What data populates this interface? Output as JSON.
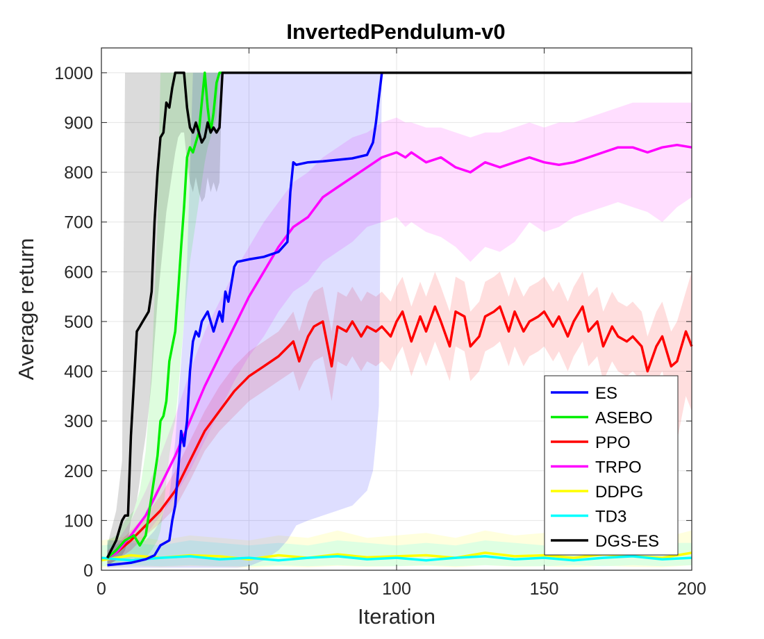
{
  "chart_data": {
    "type": "line",
    "title": "InvertedPendulum-v0",
    "xlabel": "Iteration",
    "ylabel": "Average return",
    "xlim": [
      0,
      200
    ],
    "ylim": [
      0,
      1050
    ],
    "xticks": [
      0,
      50,
      100,
      150,
      200
    ],
    "yticks": [
      0,
      100,
      200,
      300,
      400,
      500,
      600,
      700,
      800,
      900,
      1000
    ],
    "grid": true,
    "legend_position": "bottom-right",
    "series": [
      {
        "name": "ES",
        "color": "#0000ff",
        "x": [
          2,
          10,
          15,
          18,
          20,
          23,
          24,
          25,
          26,
          27,
          28,
          29,
          30,
          31,
          32,
          33,
          34,
          36,
          38,
          40,
          41,
          42,
          43,
          45,
          46,
          50,
          55,
          60,
          63,
          64,
          65,
          66,
          70,
          75,
          80,
          85,
          90,
          92,
          93,
          94,
          95,
          200
        ],
        "y": [
          10,
          15,
          22,
          30,
          50,
          60,
          100,
          130,
          200,
          280,
          250,
          300,
          400,
          460,
          480,
          470,
          500,
          520,
          480,
          520,
          500,
          560,
          540,
          610,
          620,
          625,
          630,
          640,
          660,
          760,
          820,
          815,
          820,
          822,
          825,
          828,
          835,
          860,
          900,
          950,
          1000,
          1000
        ],
        "band_upper": [
          60,
          60,
          60,
          80,
          100,
          150,
          200,
          260,
          340,
          420,
          500,
          620,
          800,
          1000,
          1000,
          1000,
          1000,
          1000,
          1000,
          1000,
          1000,
          1000,
          1000,
          1000,
          1000,
          1000,
          1000,
          1000,
          1000,
          1000,
          1000,
          1000,
          1000,
          1000,
          1000,
          1000,
          1000,
          1000,
          1000,
          1000,
          1000,
          1000
        ],
        "band_lower": [
          5,
          5,
          5,
          5,
          5,
          5,
          5,
          5,
          5,
          5,
          5,
          5,
          5,
          5,
          5,
          5,
          5,
          5,
          5,
          5,
          5,
          5,
          5,
          5,
          5,
          8,
          20,
          40,
          60,
          70,
          80,
          90,
          100,
          110,
          120,
          130,
          160,
          200,
          260,
          330,
          1000,
          1000
        ]
      },
      {
        "name": "ASEBO",
        "color": "#00ee00",
        "x": [
          2,
          5,
          8,
          11,
          13,
          15,
          17,
          19,
          20,
          21,
          22,
          23,
          24,
          25,
          26,
          27,
          28,
          29,
          30,
          31,
          32,
          33,
          34,
          35,
          36,
          37,
          38,
          39,
          40,
          41,
          42,
          200
        ],
        "y": [
          25,
          40,
          60,
          70,
          50,
          70,
          150,
          230,
          300,
          310,
          340,
          420,
          450,
          480,
          560,
          650,
          730,
          830,
          850,
          840,
          860,
          880,
          940,
          1000,
          930,
          880,
          920,
          980,
          1000,
          1000,
          1000,
          1000
        ],
        "band_upper": [
          60,
          70,
          100,
          120,
          160,
          240,
          400,
          700,
          1000,
          1000,
          1000,
          1000,
          1000,
          1000,
          1000,
          1000,
          1000,
          1000,
          1000,
          1000,
          1000,
          1000,
          1000,
          1000,
          1000,
          1000,
          1000,
          1000,
          1000,
          1000,
          1000,
          1000
        ],
        "band_lower": [
          10,
          15,
          20,
          25,
          15,
          25,
          40,
          60,
          80,
          120,
          180,
          230,
          270,
          300,
          360,
          430,
          500,
          560,
          620,
          660,
          700,
          740,
          780,
          820,
          850,
          870,
          890,
          910,
          1000,
          1000,
          1000,
          1000
        ]
      },
      {
        "name": "PPO",
        "color": "#ff0000",
        "x": [
          2,
          5,
          10,
          15,
          20,
          25,
          30,
          35,
          40,
          45,
          50,
          55,
          60,
          65,
          67,
          70,
          72,
          75,
          78,
          80,
          83,
          85,
          88,
          90,
          93,
          95,
          98,
          100,
          102,
          105,
          108,
          110,
          113,
          115,
          118,
          120,
          123,
          125,
          128,
          130,
          133,
          135,
          138,
          140,
          143,
          145,
          148,
          150,
          153,
          155,
          158,
          160,
          163,
          165,
          168,
          170,
          173,
          175,
          178,
          180,
          183,
          185,
          188,
          190,
          193,
          195,
          198,
          200
        ],
        "y": [
          25,
          35,
          60,
          90,
          120,
          160,
          220,
          280,
          320,
          360,
          390,
          410,
          430,
          460,
          420,
          470,
          490,
          500,
          410,
          490,
          480,
          500,
          470,
          490,
          480,
          490,
          470,
          500,
          520,
          460,
          510,
          480,
          530,
          500,
          450,
          520,
          510,
          450,
          470,
          510,
          520,
          530,
          480,
          520,
          480,
          500,
          510,
          520,
          490,
          510,
          470,
          500,
          530,
          480,
          500,
          450,
          490,
          470,
          460,
          470,
          450,
          400,
          450,
          470,
          410,
          420,
          480,
          450
        ],
        "band_upper": [
          40,
          50,
          80,
          110,
          150,
          200,
          260,
          320,
          370,
          410,
          440,
          460,
          480,
          520,
          480,
          540,
          560,
          570,
          480,
          560,
          550,
          570,
          540,
          560,
          550,
          560,
          540,
          570,
          590,
          530,
          580,
          550,
          600,
          570,
          520,
          590,
          580,
          520,
          540,
          580,
          590,
          600,
          550,
          590,
          550,
          570,
          580,
          590,
          560,
          580,
          540,
          570,
          600,
          550,
          570,
          520,
          560,
          540,
          530,
          540,
          520,
          470,
          520,
          540,
          480,
          500,
          560,
          600
        ],
        "band_lower": [
          10,
          20,
          40,
          70,
          95,
          125,
          180,
          240,
          280,
          310,
          340,
          360,
          380,
          400,
          360,
          400,
          420,
          430,
          340,
          420,
          410,
          430,
          400,
          420,
          410,
          420,
          400,
          430,
          450,
          390,
          440,
          410,
          460,
          430,
          380,
          450,
          440,
          380,
          400,
          440,
          450,
          460,
          410,
          450,
          410,
          430,
          440,
          450,
          420,
          440,
          400,
          430,
          460,
          410,
          430,
          380,
          420,
          400,
          390,
          400,
          380,
          330,
          380,
          400,
          340,
          260,
          350,
          320
        ]
      },
      {
        "name": "TRPO",
        "color": "#ff00ff",
        "x": [
          2,
          5,
          10,
          15,
          20,
          25,
          30,
          35,
          40,
          45,
          50,
          55,
          60,
          65,
          70,
          75,
          80,
          85,
          90,
          95,
          100,
          103,
          105,
          110,
          115,
          120,
          125,
          130,
          135,
          140,
          145,
          150,
          155,
          160,
          165,
          170,
          175,
          180,
          185,
          190,
          195,
          200
        ],
        "y": [
          25,
          35,
          70,
          110,
          170,
          230,
          300,
          370,
          430,
          490,
          550,
          600,
          650,
          690,
          710,
          750,
          770,
          790,
          810,
          830,
          840,
          830,
          840,
          820,
          830,
          810,
          800,
          820,
          810,
          820,
          830,
          820,
          815,
          820,
          830,
          840,
          850,
          850,
          840,
          850,
          855,
          850
        ],
        "band_upper": [
          40,
          55,
          100,
          160,
          230,
          310,
          400,
          480,
          540,
          600,
          650,
          700,
          740,
          780,
          800,
          830,
          850,
          870,
          880,
          900,
          910,
          900,
          900,
          890,
          890,
          880,
          870,
          880,
          880,
          890,
          900,
          890,
          900,
          900,
          910,
          920,
          930,
          940,
          940,
          940,
          940,
          940
        ],
        "band_lower": [
          10,
          20,
          40,
          70,
          110,
          150,
          200,
          260,
          320,
          380,
          430,
          470,
          520,
          560,
          580,
          620,
          640,
          660,
          690,
          700,
          710,
          690,
          700,
          680,
          670,
          650,
          620,
          650,
          640,
          660,
          700,
          680,
          690,
          710,
          720,
          730,
          740,
          730,
          720,
          700,
          730,
          750
        ]
      },
      {
        "name": "DDPG",
        "color": "#ffff00",
        "x": [
          0,
          10,
          20,
          30,
          40,
          50,
          60,
          70,
          80,
          90,
          100,
          110,
          120,
          130,
          140,
          150,
          160,
          170,
          180,
          190,
          200
        ],
        "y": [
          20,
          30,
          25,
          30,
          28,
          22,
          30,
          25,
          32,
          26,
          28,
          30,
          25,
          35,
          28,
          30,
          25,
          32,
          28,
          25,
          35
        ],
        "band_upper": [
          60,
          70,
          60,
          70,
          65,
          60,
          70,
          65,
          80,
          65,
          70,
          75,
          65,
          80,
          70,
          75,
          65,
          80,
          70,
          65,
          80
        ],
        "band_lower": [
          5,
          8,
          6,
          8,
          7,
          5,
          8,
          6,
          9,
          7,
          8,
          9,
          6,
          10,
          7,
          8,
          6,
          9,
          7,
          6,
          10
        ]
      },
      {
        "name": "TD3",
        "color": "#00ffff",
        "x": [
          0,
          10,
          20,
          30,
          40,
          50,
          60,
          70,
          80,
          90,
          100,
          110,
          120,
          130,
          140,
          150,
          160,
          170,
          180,
          190,
          200
        ],
        "y": [
          25,
          20,
          25,
          28,
          22,
          25,
          20,
          25,
          28,
          22,
          25,
          20,
          25,
          28,
          22,
          25,
          20,
          25,
          28,
          22,
          25
        ],
        "band_upper": [
          50,
          55,
          50,
          60,
          55,
          50,
          55,
          50,
          60,
          55,
          50,
          55,
          50,
          60,
          55,
          50,
          55,
          50,
          60,
          55,
          55
        ],
        "band_lower": [
          8,
          10,
          8,
          10,
          8,
          8,
          10,
          8,
          10,
          8,
          8,
          10,
          8,
          10,
          8,
          8,
          10,
          8,
          10,
          8,
          10
        ]
      },
      {
        "name": "DGS-ES",
        "color": "#000000",
        "x": [
          2,
          5,
          7,
          8,
          9,
          10,
          12,
          13,
          14,
          15,
          16,
          17,
          18,
          19,
          20,
          21,
          22,
          23,
          24,
          25,
          26,
          27,
          28,
          29,
          30,
          31,
          32,
          33,
          34,
          35,
          36,
          37,
          38,
          39,
          40,
          41,
          42,
          200
        ],
        "y": [
          25,
          60,
          100,
          110,
          110,
          270,
          480,
          490,
          500,
          510,
          520,
          560,
          700,
          800,
          870,
          880,
          940,
          930,
          970,
          1000,
          1000,
          1000,
          1000,
          930,
          890,
          880,
          900,
          880,
          860,
          870,
          900,
          880,
          890,
          880,
          890,
          1000,
          1000,
          1000
        ],
        "band_upper": [
          50,
          120,
          220,
          1000,
          1000,
          1000,
          1000,
          1000,
          1000,
          1000,
          1000,
          1000,
          1000,
          1000,
          1000,
          1000,
          1000,
          1000,
          1000,
          1000,
          1000,
          1000,
          1000,
          1000,
          1000,
          1000,
          1000,
          1000,
          1000,
          1000,
          1000,
          1000,
          1000,
          1000,
          1000,
          1000,
          1000,
          1000
        ],
        "band_lower": [
          10,
          20,
          30,
          40,
          60,
          100,
          140,
          180,
          230,
          270,
          320,
          380,
          460,
          540,
          600,
          660,
          720,
          760,
          800,
          840,
          870,
          880,
          880,
          820,
          780,
          760,
          790,
          760,
          740,
          750,
          790,
          760,
          780,
          760,
          780,
          1000,
          1000,
          1000
        ]
      }
    ]
  }
}
